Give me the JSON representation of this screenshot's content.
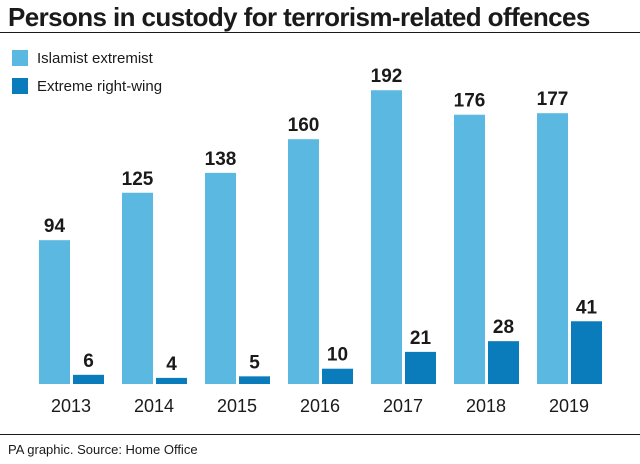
{
  "chart_data": {
    "type": "bar",
    "title": "Persons in custody for terrorism-related offences",
    "categories": [
      "2013",
      "2014",
      "2015",
      "2016",
      "2017",
      "2018",
      "2019"
    ],
    "series": [
      {
        "name": "Islamist extremist",
        "color": "#5bb8e0",
        "values": [
          94,
          125,
          138,
          160,
          192,
          176,
          177
        ]
      },
      {
        "name": "Extreme right-wing",
        "color": "#0b7cbb",
        "values": [
          6,
          4,
          5,
          10,
          21,
          28,
          41
        ]
      }
    ],
    "ylim": [
      0,
      200
    ],
    "xlabel": "",
    "ylabel": "",
    "grid": false,
    "legend": "top-left",
    "source": "PA graphic. Source: Home Office"
  }
}
